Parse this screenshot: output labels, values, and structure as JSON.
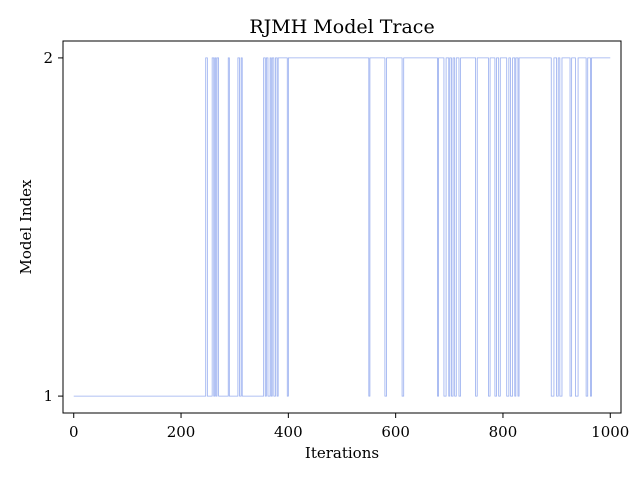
{
  "chart_data": {
    "type": "line",
    "title": "RJMH Model Trace",
    "xlabel": "Iterations",
    "ylabel": "Model Index",
    "xlim": [
      -20,
      1020
    ],
    "ylim": [
      0.95,
      2.05
    ],
    "xticks": [
      0,
      200,
      400,
      600,
      800,
      1000
    ],
    "yticks": [
      1,
      2
    ],
    "grid": false,
    "series": [
      {
        "color": "#4169e1",
        "segments": [
          [
            0,
            1
          ],
          [
            246,
            2
          ],
          [
            249,
            1
          ],
          [
            258,
            2
          ],
          [
            261,
            1
          ],
          [
            263,
            2
          ],
          [
            265,
            1
          ],
          [
            267,
            2
          ],
          [
            270,
            1
          ],
          [
            288,
            2
          ],
          [
            290,
            1
          ],
          [
            306,
            2
          ],
          [
            309,
            1
          ],
          [
            312,
            2
          ],
          [
            314,
            1
          ],
          [
            354,
            2
          ],
          [
            357,
            1
          ],
          [
            359,
            2
          ],
          [
            362,
            1
          ],
          [
            366,
            2
          ],
          [
            368,
            1
          ],
          [
            370,
            2
          ],
          [
            373,
            1
          ],
          [
            376,
            2
          ],
          [
            379,
            1
          ],
          [
            381,
            2
          ],
          [
            398,
            1
          ],
          [
            400,
            2
          ],
          [
            550,
            1
          ],
          [
            552,
            2
          ],
          [
            580,
            1
          ],
          [
            583,
            2
          ],
          [
            612,
            1
          ],
          [
            615,
            2
          ],
          [
            678,
            1
          ],
          [
            680,
            2
          ],
          [
            690,
            1
          ],
          [
            694,
            2
          ],
          [
            699,
            1
          ],
          [
            701,
            2
          ],
          [
            704,
            1
          ],
          [
            707,
            2
          ],
          [
            710,
            1
          ],
          [
            713,
            2
          ],
          [
            718,
            1
          ],
          [
            721,
            2
          ],
          [
            749,
            1
          ],
          [
            752,
            2
          ],
          [
            773,
            1
          ],
          [
            776,
            2
          ],
          [
            785,
            1
          ],
          [
            788,
            2
          ],
          [
            792,
            1
          ],
          [
            795,
            2
          ],
          [
            807,
            1
          ],
          [
            811,
            2
          ],
          [
            814,
            1
          ],
          [
            818,
            2
          ],
          [
            822,
            1
          ],
          [
            824,
            2
          ],
          [
            828,
            1
          ],
          [
            830,
            2
          ],
          [
            890,
            1
          ],
          [
            895,
            2
          ],
          [
            900,
            1
          ],
          [
            903,
            2
          ],
          [
            906,
            1
          ],
          [
            910,
            2
          ],
          [
            925,
            1
          ],
          [
            928,
            2
          ],
          [
            935,
            1
          ],
          [
            940,
            2
          ],
          [
            955,
            1
          ],
          [
            958,
            2
          ],
          [
            963,
            1
          ],
          [
            965,
            2
          ],
          [
            1000,
            2
          ]
        ]
      }
    ]
  }
}
